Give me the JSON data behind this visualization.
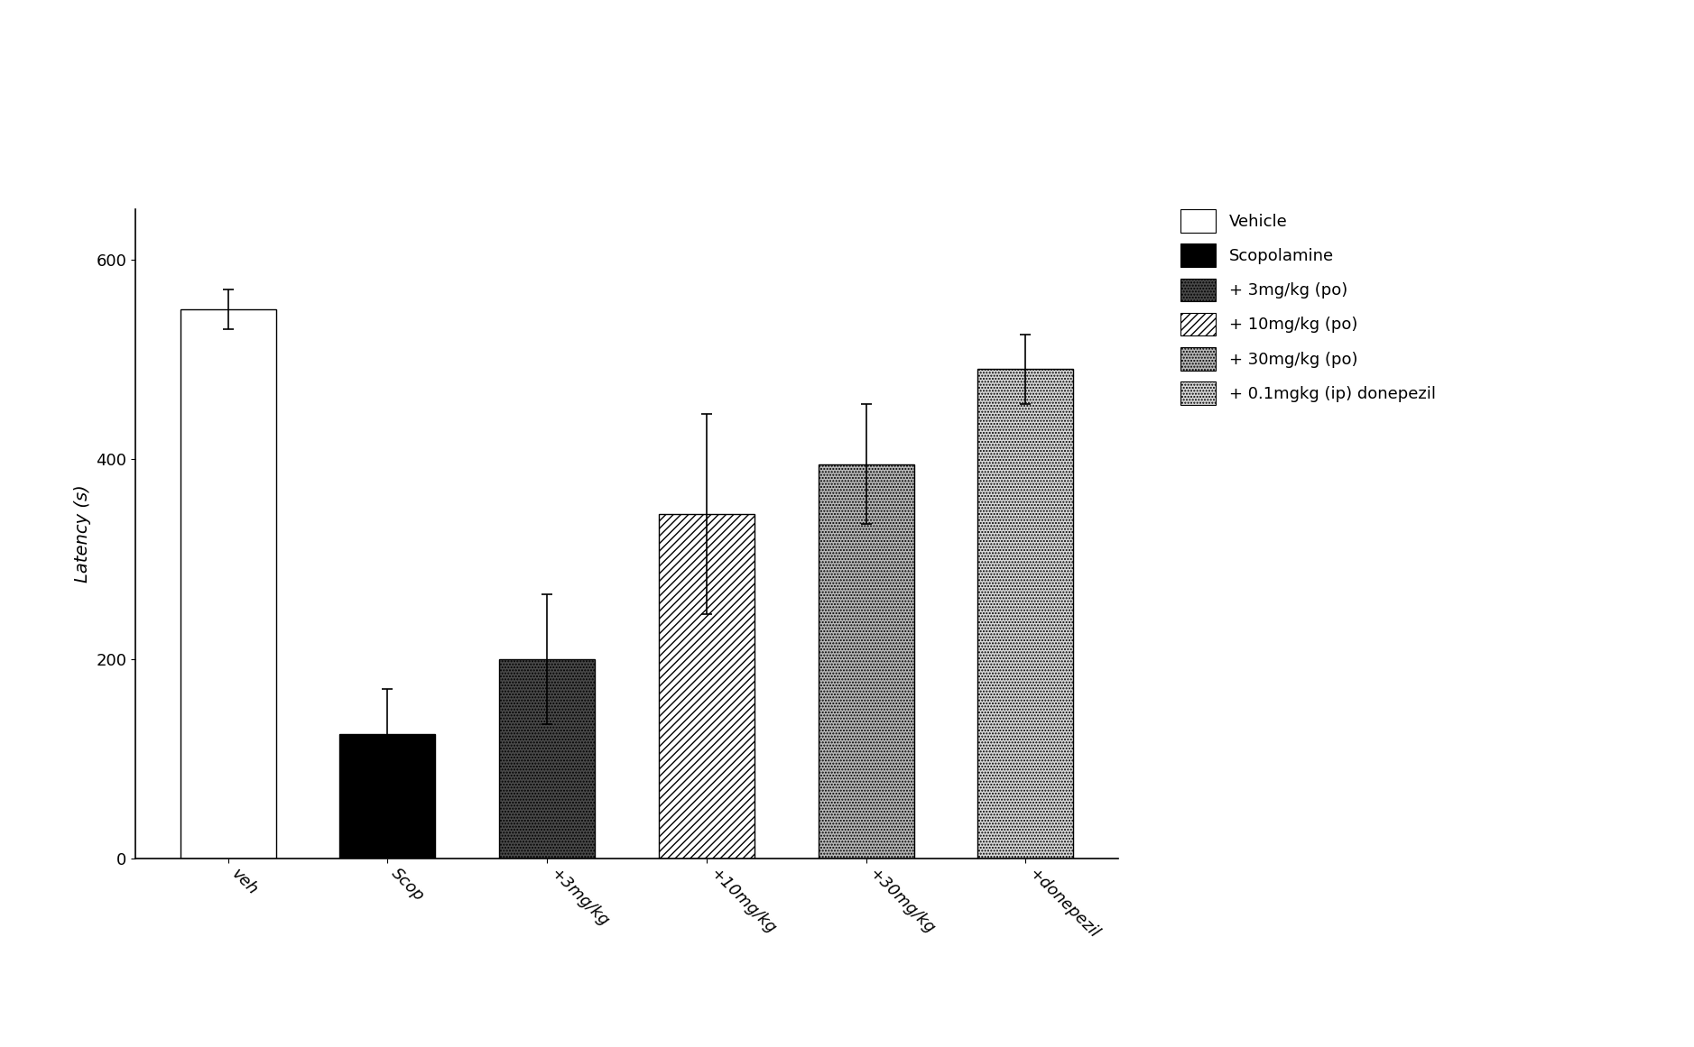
{
  "categories": [
    "veh",
    "Scop",
    "+3mg/kg",
    "+10mg/kg",
    "+30mg/kg",
    "+donepezil"
  ],
  "values": [
    550,
    125,
    200,
    345,
    395,
    490
  ],
  "errors": [
    20,
    45,
    65,
    100,
    60,
    35
  ],
  "ylabel": "Latency (s)",
  "ylim": [
    0,
    650
  ],
  "yticks": [
    0,
    200,
    400,
    600
  ],
  "legend_labels": [
    "Vehicle",
    "Scopolamine",
    "+ 3mg/kg (po)",
    "+ 10mg/kg (po)",
    "+ 30mg/kg (po)",
    "+ 0.1mgkg (ip) donepezil"
  ],
  "background_color": "white",
  "bar_width": 0.6,
  "capsize": 4,
  "font_size": 13
}
